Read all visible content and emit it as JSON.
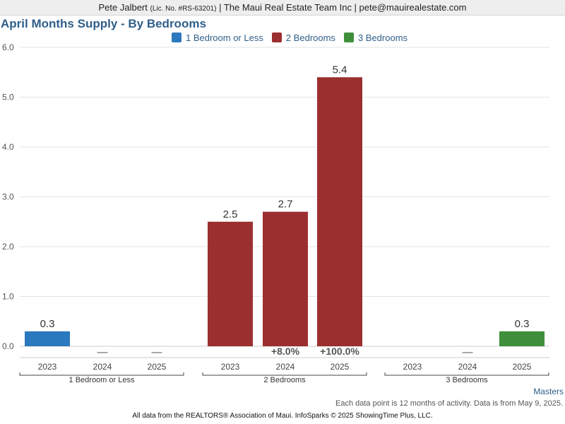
{
  "header": {
    "agent_name": "Pete Jalbert",
    "license": "(Lic. No. #RS-63201)",
    "company": "| The Maui Real Estate Team Inc | pete@mauirealestate.com"
  },
  "footer": {
    "masters": "Masters",
    "note": "Each data point is 12 months of activity. Data is from May 9, 2025.",
    "credit": "All data from the REALTORS® Association of Maui. InfoSparks © 2025 ShowingTime Plus, LLC."
  },
  "chart_data": {
    "type": "bar",
    "title": "April Months Supply - By Bedrooms",
    "ylim": [
      0,
      6
    ],
    "yticks": [
      "0.0",
      "1.0",
      "2.0",
      "3.0",
      "4.0",
      "5.0",
      "6.0"
    ],
    "grid": true,
    "legend_position": "top",
    "colors": {
      "1 Bedroom or Less": "#2a78bd",
      "2 Bedrooms": "#9b2f2f",
      "3 Bedrooms": "#3f8f3a"
    },
    "groups": [
      {
        "name": "1 Bedroom or Less",
        "categories": [
          "2023",
          "2024",
          "2025"
        ],
        "values": [
          0.3,
          null,
          null
        ],
        "labels": [
          "0.3",
          "—",
          "—"
        ],
        "changes": [
          "",
          "",
          ""
        ]
      },
      {
        "name": "2 Bedrooms",
        "categories": [
          "2023",
          "2024",
          "2025"
        ],
        "values": [
          2.5,
          2.7,
          5.4
        ],
        "labels": [
          "2.5",
          "2.7",
          "5.4"
        ],
        "changes": [
          "",
          "+8.0%",
          "+100.0%"
        ]
      },
      {
        "name": "3 Bedrooms",
        "categories": [
          "2023",
          "2024",
          "2025"
        ],
        "values": [
          null,
          null,
          0.3
        ],
        "labels": [
          "",
          "—",
          "0.3"
        ],
        "changes": [
          "",
          "",
          ""
        ]
      }
    ]
  }
}
